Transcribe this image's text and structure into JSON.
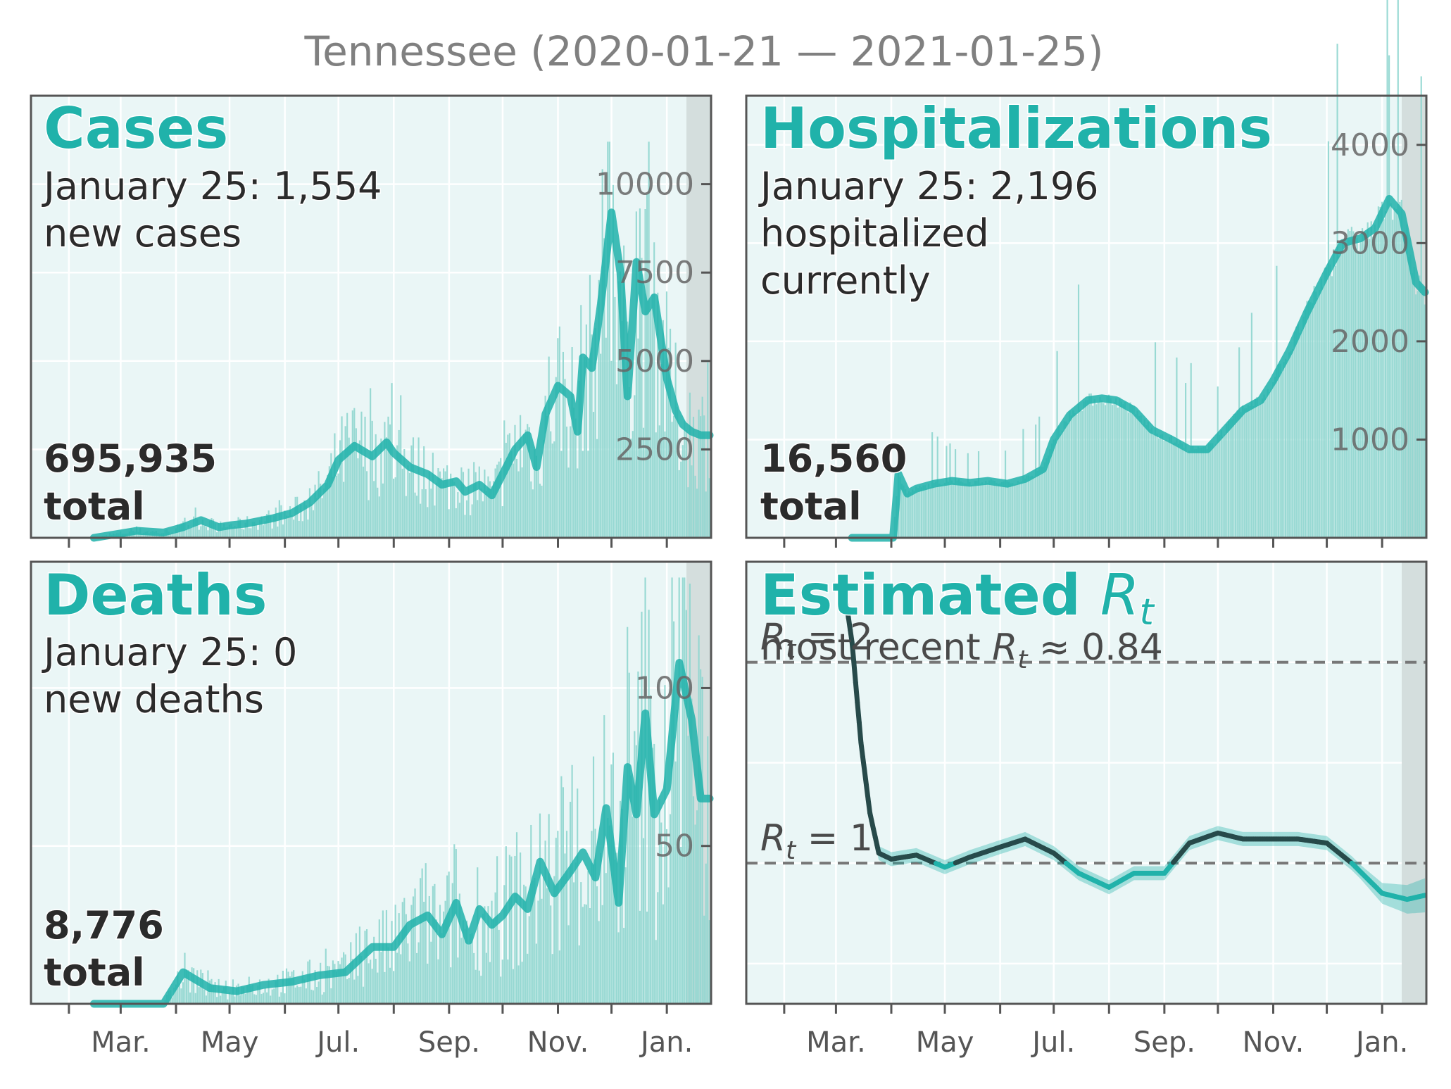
{
  "title": "Tennessee (2020-01-21 — 2021-01-25)",
  "colors": {
    "accent": "#20b2aa",
    "bar": "#8fd6cf",
    "panel_bg": "#eaf6f6",
    "grid": "#ffffff",
    "recent_shade": "#d4dedd",
    "frame": "#555555",
    "text_dark": "#2b2b2b",
    "tick_text": "#666666",
    "title_text": "#808080",
    "rt_dark": "#274a4a",
    "dash": "#777777"
  },
  "x_axis": {
    "tick_labels": [
      "Mar.",
      "May",
      "Jul.",
      "Sep.",
      "Nov.",
      "Jan."
    ]
  },
  "panels": {
    "cases": {
      "heading": "Cases",
      "line1": "January 25: 1,554",
      "line2": "new cases",
      "total_value": "695,935",
      "total_label": "total",
      "y_ticks": [
        "2500",
        "5000",
        "7500",
        "10000"
      ]
    },
    "hosp": {
      "heading": "Hospitalizations",
      "line1": "January 25: 2,196",
      "line2": "hospitalized",
      "line3": "currently",
      "total_value": "16,560",
      "total_label": "total",
      "y_ticks": [
        "1000",
        "2000",
        "3000",
        "4000"
      ]
    },
    "deaths": {
      "heading": "Deaths",
      "line1": "January 25: 0",
      "line2": "new deaths",
      "total_value": "8,776",
      "total_label": "total",
      "y_ticks": [
        "50",
        "100"
      ]
    },
    "rt": {
      "heading_main": "Estimated ",
      "heading_sym": "R",
      "heading_sub": "t",
      "recent_prefix": "most recent ",
      "recent_sym": "R",
      "recent_sub": "t",
      "recent_suffix": " ≈ 0.84",
      "ref2_sym": "R",
      "ref2_sub": "t",
      "ref2_suffix": " = 2",
      "ref1_sym": "R",
      "ref1_sub": "t",
      "ref1_suffix": " = 1"
    }
  },
  "chart_data": [
    {
      "type": "bar",
      "name": "cases",
      "x_start": "2020-01-21",
      "x_end": "2021-01-25",
      "ylim": [
        0,
        12500
      ],
      "grid": true,
      "smoothed": {
        "x": [
          "2020-02-15",
          "2020-03-10",
          "2020-03-25",
          "2020-04-05",
          "2020-04-15",
          "2020-04-25",
          "2020-05-01",
          "2020-05-10",
          "2020-05-25",
          "2020-06-05",
          "2020-06-15",
          "2020-06-25",
          "2020-07-01",
          "2020-07-10",
          "2020-07-20",
          "2020-07-28",
          "2020-08-01",
          "2020-08-10",
          "2020-08-20",
          "2020-08-28",
          "2020-09-05",
          "2020-09-10",
          "2020-09-18",
          "2020-09-25",
          "2020-10-01",
          "2020-10-08",
          "2020-10-15",
          "2020-10-20",
          "2020-10-25",
          "2020-11-01",
          "2020-11-08",
          "2020-11-12",
          "2020-11-15",
          "2020-11-20",
          "2020-11-25",
          "2020-12-01",
          "2020-12-06",
          "2020-12-10",
          "2020-12-15",
          "2020-12-20",
          "2020-12-25",
          "2021-01-01",
          "2021-01-06",
          "2021-01-10",
          "2021-01-15",
          "2021-01-20",
          "2021-01-25"
        ],
        "y": [
          0,
          200,
          150,
          300,
          500,
          300,
          350,
          400,
          550,
          700,
          1000,
          1500,
          2200,
          2600,
          2300,
          2700,
          2400,
          2000,
          1800,
          1500,
          1600,
          1300,
          1500,
          1200,
          1800,
          2500,
          2900,
          2000,
          3500,
          4300,
          4000,
          3000,
          5100,
          4800,
          6600,
          9200,
          7500,
          4000,
          7800,
          6400,
          6800,
          4500,
          3600,
          3200,
          3000,
          2900,
          2900
        ]
      },
      "bars_note_peak": 11200
    },
    {
      "type": "area",
      "name": "hospitalizations",
      "x_start": "2020-01-21",
      "x_end": "2021-01-25",
      "ylim": [
        0,
        4500
      ],
      "grid": true,
      "smoothed": {
        "x": [
          "2020-03-10",
          "2020-04-02",
          "2020-04-05",
          "2020-04-10",
          "2020-04-15",
          "2020-04-25",
          "2020-05-05",
          "2020-05-15",
          "2020-05-25",
          "2020-06-05",
          "2020-06-15",
          "2020-06-25",
          "2020-07-01",
          "2020-07-10",
          "2020-07-20",
          "2020-07-28",
          "2020-08-05",
          "2020-08-15",
          "2020-08-25",
          "2020-09-05",
          "2020-09-15",
          "2020-09-25",
          "2020-10-05",
          "2020-10-15",
          "2020-10-25",
          "2020-11-01",
          "2020-11-10",
          "2020-11-20",
          "2020-12-01",
          "2020-12-10",
          "2020-12-20",
          "2020-12-28",
          "2021-01-05",
          "2021-01-12",
          "2021-01-20",
          "2021-01-25"
        ],
        "y": [
          0,
          0,
          650,
          450,
          500,
          550,
          580,
          560,
          580,
          550,
          600,
          700,
          1000,
          1250,
          1400,
          1420,
          1400,
          1300,
          1100,
          1000,
          900,
          900,
          1100,
          1300,
          1400,
          1600,
          1900,
          2300,
          2700,
          3000,
          3050,
          3150,
          3450,
          3300,
          2600,
          2500
        ]
      }
    },
    {
      "type": "bar",
      "name": "deaths",
      "x_start": "2020-01-21",
      "x_end": "2021-01-25",
      "ylim": [
        0,
        140
      ],
      "grid": true,
      "smoothed": {
        "x": [
          "2020-02-15",
          "2020-03-25",
          "2020-04-05",
          "2020-04-20",
          "2020-05-05",
          "2020-05-20",
          "2020-06-05",
          "2020-06-20",
          "2020-07-05",
          "2020-07-20",
          "2020-08-01",
          "2020-08-10",
          "2020-08-20",
          "2020-08-28",
          "2020-09-05",
          "2020-09-12",
          "2020-09-18",
          "2020-09-25",
          "2020-10-01",
          "2020-10-08",
          "2020-10-15",
          "2020-10-22",
          "2020-10-30",
          "2020-11-08",
          "2020-11-15",
          "2020-11-22",
          "2020-11-28",
          "2020-12-05",
          "2020-12-10",
          "2020-12-15",
          "2020-12-20",
          "2020-12-25",
          "2021-01-01",
          "2021-01-08",
          "2021-01-15",
          "2021-01-20",
          "2021-01-25"
        ],
        "y": [
          0,
          0,
          10,
          5,
          4,
          6,
          7,
          9,
          10,
          18,
          18,
          25,
          28,
          22,
          32,
          20,
          30,
          25,
          28,
          34,
          30,
          45,
          35,
          42,
          48,
          40,
          62,
          32,
          75,
          60,
          92,
          60,
          68,
          108,
          90,
          65,
          65
        ]
      },
      "bars_note_peak": 135
    },
    {
      "type": "line",
      "name": "estimated_rt",
      "x_start": "2020-01-21",
      "x_end": "2021-01-25",
      "ylim": [
        0.3,
        2.5
      ],
      "reference_lines": [
        1,
        2
      ],
      "grid": true,
      "smoothed": {
        "x": [
          "2020-03-05",
          "2020-03-10",
          "2020-03-15",
          "2020-03-20",
          "2020-03-25",
          "2020-04-01",
          "2020-04-15",
          "2020-05-01",
          "2020-05-15",
          "2020-06-01",
          "2020-06-15",
          "2020-07-01",
          "2020-07-15",
          "2020-08-01",
          "2020-08-15",
          "2020-09-01",
          "2020-09-15",
          "2020-10-01",
          "2020-10-15",
          "2020-11-01",
          "2020-11-15",
          "2020-12-01",
          "2020-12-15",
          "2021-01-01",
          "2021-01-15",
          "2021-01-25"
        ],
        "y": [
          2.4,
          2.1,
          1.6,
          1.25,
          1.05,
          1.02,
          1.04,
          0.98,
          1.03,
          1.08,
          1.12,
          1.05,
          0.95,
          0.88,
          0.95,
          0.95,
          1.1,
          1.15,
          1.12,
          1.12,
          1.12,
          1.1,
          1.0,
          0.85,
          0.82,
          0.84
        ]
      },
      "recent_rt": 0.84
    }
  ]
}
